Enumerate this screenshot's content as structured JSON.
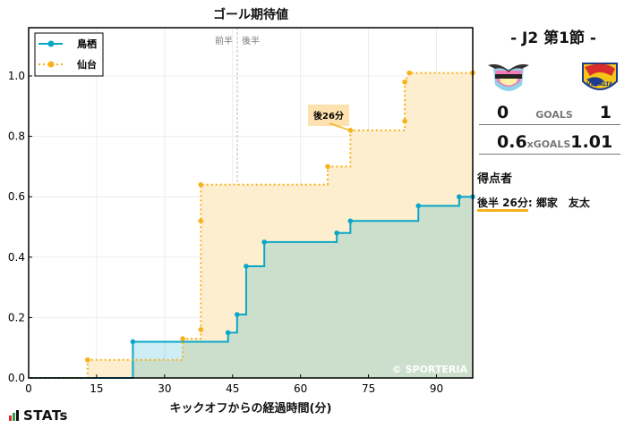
{
  "chart_data": {
    "type": "line",
    "subtype": "step-cumulative-area",
    "title": "ゴール期待値",
    "xlabel": "キックオフからの経過時間(分)",
    "ylabel": "",
    "xlim": [
      0,
      98
    ],
    "ylim": [
      0,
      1.15
    ],
    "x_ticks": [
      0,
      15,
      30,
      45,
      60,
      75,
      90
    ],
    "y_ticks": [
      0.0,
      0.2,
      0.4,
      0.6,
      0.8,
      1.0
    ],
    "y_tick_labels": [
      "0.0",
      "0.2",
      "0.4",
      "0.6",
      "0.8",
      "1.0"
    ],
    "grid": true,
    "legend_position": "upper left",
    "half_divider_x": 46,
    "half_labels": [
      "前半",
      "後半"
    ],
    "series": [
      {
        "name": "鳥栖",
        "color": "#0aa6c8",
        "line_style": "solid",
        "points": [
          [
            0,
            0
          ],
          [
            23,
            0
          ],
          [
            23,
            0.12
          ],
          [
            44,
            0.12
          ],
          [
            44,
            0.15
          ],
          [
            46,
            0.15
          ],
          [
            46,
            0.21
          ],
          [
            48,
            0.21
          ],
          [
            48,
            0.37
          ],
          [
            52,
            0.37
          ],
          [
            52,
            0.45
          ],
          [
            68,
            0.45
          ],
          [
            68,
            0.48
          ],
          [
            71,
            0.48
          ],
          [
            71,
            0.52
          ],
          [
            86,
            0.52
          ],
          [
            86,
            0.57
          ],
          [
            95,
            0.57
          ],
          [
            95,
            0.6
          ],
          [
            98,
            0.6
          ]
        ]
      },
      {
        "name": "仙台",
        "color": "#f7b11b",
        "line_style": "dotted",
        "points": [
          [
            0,
            0
          ],
          [
            13,
            0
          ],
          [
            13,
            0.06
          ],
          [
            34,
            0.06
          ],
          [
            34,
            0.13
          ],
          [
            38,
            0.13
          ],
          [
            38,
            0.16
          ],
          [
            38,
            0.52
          ],
          [
            38,
            0.64
          ],
          [
            66,
            0.64
          ],
          [
            66,
            0.7
          ],
          [
            71,
            0.7
          ],
          [
            71,
            0.82
          ],
          [
            83,
            0.82
          ],
          [
            83,
            0.85
          ],
          [
            83,
            0.98
          ],
          [
            84,
            1.01
          ],
          [
            98,
            1.01
          ]
        ]
      }
    ],
    "annotations": [
      {
        "text": "後26分",
        "x": 71,
        "y": 0.82,
        "note": "goal marker for 仙台"
      }
    ],
    "watermark": "© SPORTERIA"
  },
  "labels": {
    "title": "ゴール期待値",
    "xlabel": "キックオフからの経過時間(分)",
    "first_half": "前半",
    "second_half": "後半",
    "annotation": "後26分",
    "watermark": "© SPORTERIA",
    "brand": "STATs"
  },
  "legend": {
    "home": "鳥栖",
    "away": "仙台"
  },
  "panel": {
    "round": "- J2 第1節 -",
    "home_team_logo": "sagan-tosu-crest",
    "away_team_logo": "vegalta-sendai-crest",
    "goals": {
      "home": "0",
      "label": "GOALS",
      "away": "1"
    },
    "xgoals": {
      "home": "0.6",
      "label": "xGOALS",
      "away": "1.01"
    },
    "scorers_title": "得点者",
    "scorers": [
      {
        "time": "後半 26分",
        "name": ": 郷家　友太"
      }
    ]
  },
  "colors": {
    "home": "#0aa6c8",
    "away": "#f7b11b",
    "home_fill": "#c9e0d1",
    "away_fill": "#fdeecf"
  }
}
